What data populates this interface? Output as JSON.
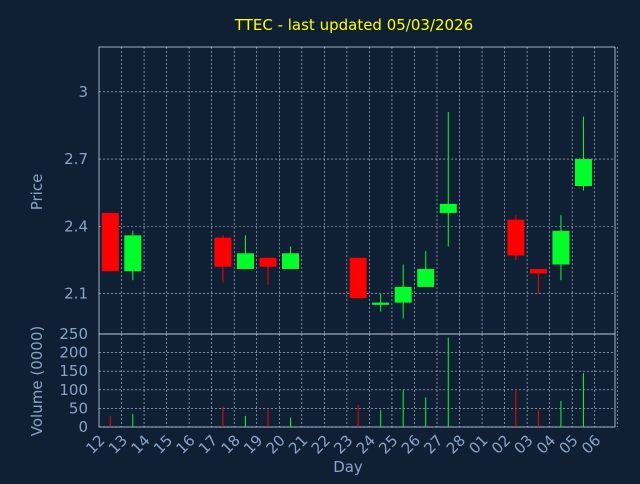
{
  "colors": {
    "background": "#0f2034",
    "title": "#ffff00",
    "axis_text": "#8aa3c8",
    "grid": "#c8d0dc",
    "up": "#00ff2a",
    "down": "#ff0000"
  },
  "chart_data": [
    {
      "type": "candlestick",
      "title": "TTEC - last updated 05/03/2026",
      "ylabel": "Price",
      "ylim": [
        1.92,
        3.2
      ],
      "yticks": [
        2.1,
        2.4,
        2.7,
        3
      ],
      "ytick_labels": [
        "2.1",
        "2.4",
        "2.7",
        "3"
      ],
      "grid": true,
      "categories": [
        "12",
        "13",
        "14",
        "15",
        "16",
        "17",
        "18",
        "19",
        "20",
        "21",
        "22",
        "23",
        "24",
        "25",
        "26",
        "27",
        "28",
        "01",
        "02",
        "03",
        "04",
        "05",
        "06"
      ],
      "candles": [
        {
          "day": "12",
          "open": 2.46,
          "close": 2.2,
          "high": 2.46,
          "low": 2.2
        },
        {
          "day": "13",
          "open": 2.2,
          "close": 2.36,
          "high": 2.38,
          "low": 2.16
        },
        {
          "day": "17",
          "open": 2.35,
          "close": 2.22,
          "high": 2.36,
          "low": 2.15
        },
        {
          "day": "18",
          "open": 2.21,
          "close": 2.28,
          "high": 2.36,
          "low": 2.21
        },
        {
          "day": "19",
          "open": 2.26,
          "close": 2.22,
          "high": 2.26,
          "low": 2.14
        },
        {
          "day": "20",
          "open": 2.21,
          "close": 2.28,
          "high": 2.31,
          "low": 2.21
        },
        {
          "day": "23",
          "open": 2.26,
          "close": 2.08,
          "high": 2.26,
          "low": 2.08
        },
        {
          "day": "24",
          "open": 2.05,
          "close": 2.06,
          "high": 2.1,
          "low": 2.02
        },
        {
          "day": "25",
          "open": 2.06,
          "close": 2.13,
          "high": 2.23,
          "low": 1.99
        },
        {
          "day": "26",
          "open": 2.13,
          "close": 2.21,
          "high": 2.29,
          "low": 2.13
        },
        {
          "day": "27",
          "open": 2.46,
          "close": 2.5,
          "high": 2.91,
          "low": 2.31
        },
        {
          "day": "02",
          "open": 2.43,
          "close": 2.27,
          "high": 2.45,
          "low": 2.25
        },
        {
          "day": "03",
          "open": 2.21,
          "close": 2.19,
          "high": 2.21,
          "low": 2.1
        },
        {
          "day": "04",
          "open": 2.23,
          "close": 2.38,
          "high": 2.45,
          "low": 2.16
        },
        {
          "day": "05",
          "open": 2.58,
          "close": 2.7,
          "high": 2.89,
          "low": 2.56
        }
      ]
    },
    {
      "type": "bar",
      "ylabel": "Volume (0000)",
      "xlabel": "Day",
      "ylim": [
        0,
        250
      ],
      "yticks": [
        0,
        50,
        100,
        150,
        200,
        250
      ],
      "ytick_labels": [
        "0",
        "50",
        "100",
        "150",
        "200",
        "250"
      ],
      "grid": true,
      "categories": [
        "12",
        "13",
        "14",
        "15",
        "16",
        "17",
        "18",
        "19",
        "20",
        "21",
        "22",
        "23",
        "24",
        "25",
        "26",
        "27",
        "28",
        "01",
        "02",
        "03",
        "04",
        "05",
        "06"
      ],
      "bars": [
        {
          "day": "12",
          "value": 30,
          "direction": "down"
        },
        {
          "day": "13",
          "value": 35,
          "direction": "up"
        },
        {
          "day": "17",
          "value": 55,
          "direction": "down"
        },
        {
          "day": "18",
          "value": 30,
          "direction": "up"
        },
        {
          "day": "19",
          "value": 45,
          "direction": "down"
        },
        {
          "day": "20",
          "value": 25,
          "direction": "up"
        },
        {
          "day": "23",
          "value": 60,
          "direction": "down"
        },
        {
          "day": "24",
          "value": 45,
          "direction": "up"
        },
        {
          "day": "25",
          "value": 100,
          "direction": "up"
        },
        {
          "day": "26",
          "value": 80,
          "direction": "up"
        },
        {
          "day": "27",
          "value": 240,
          "direction": "up"
        },
        {
          "day": "02",
          "value": 100,
          "direction": "down"
        },
        {
          "day": "03",
          "value": 45,
          "direction": "down"
        },
        {
          "day": "04",
          "value": 70,
          "direction": "up"
        },
        {
          "day": "05",
          "value": 145,
          "direction": "up"
        }
      ]
    }
  ]
}
